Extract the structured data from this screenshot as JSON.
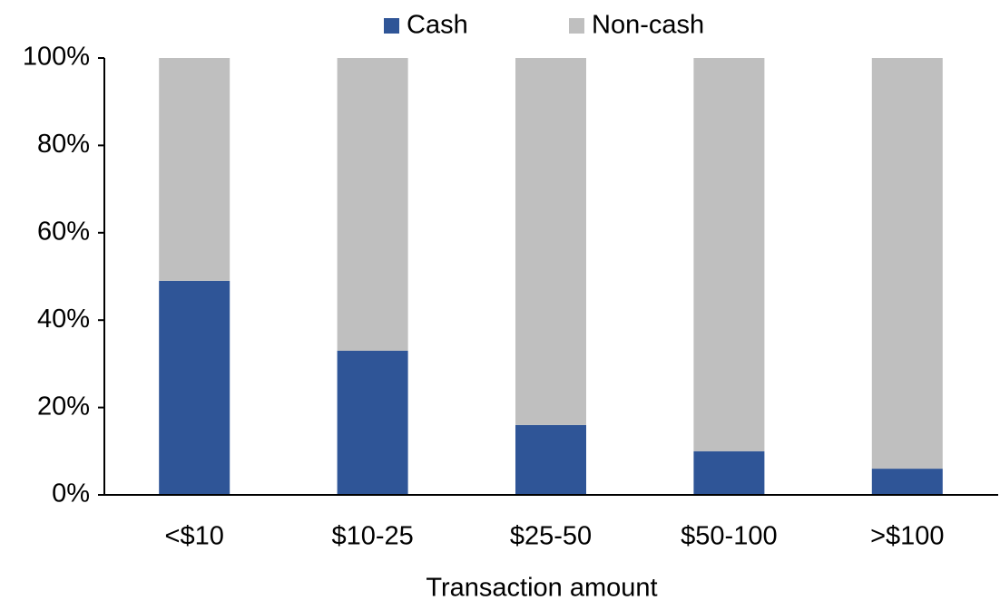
{
  "chart_data": {
    "type": "stacked_bar",
    "categories": [
      "<$10",
      "$10-25",
      "$25-50",
      "$50-100",
      ">$100"
    ],
    "series": [
      {
        "name": "Cash",
        "color": "#2f5597",
        "values": [
          49,
          33,
          16,
          10,
          6
        ]
      },
      {
        "name": "Non-cash",
        "color": "#bfbfbf",
        "values": [
          51,
          67,
          84,
          90,
          94
        ]
      }
    ],
    "x_label": "Transaction amount",
    "ylim": [
      0,
      100
    ],
    "yticks": [
      {
        "value": 0,
        "label": "0%"
      },
      {
        "value": 20,
        "label": "20%"
      },
      {
        "value": 40,
        "label": "40%"
      },
      {
        "value": 60,
        "label": "60%"
      },
      {
        "value": 80,
        "label": "80%"
      },
      {
        "value": 100,
        "label": "100%"
      }
    ],
    "legend": "top"
  }
}
